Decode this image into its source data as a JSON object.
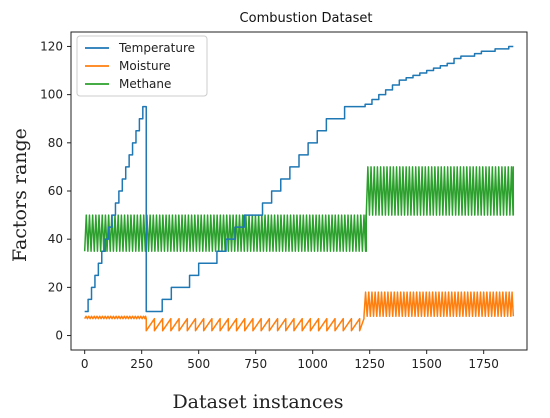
{
  "chart_data": {
    "type": "line",
    "title": "Combustion Dataset",
    "xlabel": "Dataset instances",
    "ylabel": "Factors range",
    "xlim": [
      -60,
      1940
    ],
    "ylim": [
      -6,
      126
    ],
    "xticks": [
      0,
      250,
      500,
      750,
      1000,
      1250,
      1500,
      1750
    ],
    "yticks": [
      0,
      20,
      40,
      60,
      80,
      100,
      120
    ],
    "grid": false,
    "legend_position": "top-left",
    "series": [
      {
        "name": "Temperature",
        "color": "#1f77b4",
        "shape": "step",
        "x": [
          0,
          15,
          30,
          45,
          60,
          75,
          90,
          105,
          120,
          135,
          150,
          165,
          180,
          195,
          210,
          225,
          240,
          255,
          265,
          270,
          300,
          340,
          380,
          420,
          460,
          500,
          540,
          580,
          620,
          660,
          700,
          740,
          780,
          820,
          860,
          900,
          940,
          980,
          1020,
          1060,
          1100,
          1140,
          1180,
          1220,
          1230,
          1260,
          1290,
          1320,
          1350,
          1380,
          1410,
          1440,
          1470,
          1500,
          1530,
          1560,
          1590,
          1620,
          1650,
          1680,
          1710,
          1740,
          1770,
          1800,
          1830,
          1860,
          1880
        ],
        "y": [
          10,
          15,
          20,
          25,
          30,
          35,
          40,
          45,
          50,
          55,
          60,
          65,
          70,
          75,
          80,
          85,
          90,
          95,
          95,
          10,
          10,
          15,
          20,
          20,
          25,
          30,
          30,
          35,
          40,
          45,
          50,
          50,
          55,
          60,
          65,
          70,
          75,
          80,
          85,
          90,
          90,
          95,
          95,
          95,
          96,
          98,
          100,
          102,
          104,
          106,
          107,
          108,
          109,
          110,
          111,
          112,
          113,
          115,
          116,
          116,
          117,
          118,
          118,
          119,
          119,
          120,
          120
        ]
      },
      {
        "name": "Moisture",
        "color": "#ff7f0e",
        "segments": [
          {
            "x_start": 0,
            "x_end": 270,
            "y_min": 7,
            "y_max": 8,
            "period": 12,
            "wave": "triangle"
          },
          {
            "x_start": 270,
            "x_end": 1225,
            "y_min": 2,
            "y_max": 7,
            "period": 36,
            "wave": "sawtooth"
          },
          {
            "x_start": 1225,
            "x_end": 1880,
            "y_min": 8,
            "y_max": 18,
            "period": 14,
            "wave": "triangle"
          }
        ]
      },
      {
        "name": "Methane",
        "color": "#2ca02c",
        "segments": [
          {
            "x_start": 0,
            "x_end": 1235,
            "y_min": 35,
            "y_max": 50,
            "period": 14,
            "wave": "triangle"
          },
          {
            "x_start": 1235,
            "x_end": 1880,
            "y_min": 50,
            "y_max": 70,
            "period": 14,
            "wave": "triangle"
          }
        ]
      }
    ]
  }
}
